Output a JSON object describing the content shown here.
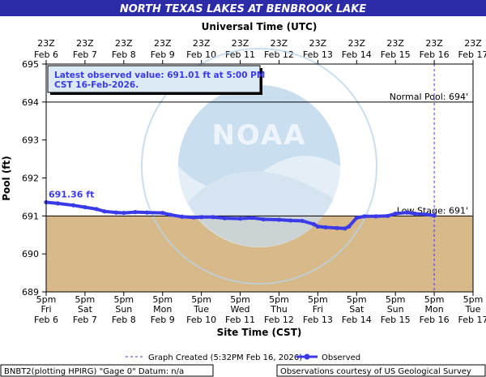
{
  "header": {
    "title": "NORTH TEXAS LAKES AT BENBROOK LAKE"
  },
  "top_axis": {
    "title": "Universal Time (UTC)",
    "ticks": [
      {
        "time": "23Z",
        "date": "Feb 6"
      },
      {
        "time": "23Z",
        "date": "Feb 7"
      },
      {
        "time": "23Z",
        "date": "Feb 8"
      },
      {
        "time": "23Z",
        "date": "Feb 9"
      },
      {
        "time": "23Z",
        "date": "Feb 10"
      },
      {
        "time": "23Z",
        "date": "Feb 11"
      },
      {
        "time": "23Z",
        "date": "Feb 12"
      },
      {
        "time": "23Z",
        "date": "Feb 13"
      },
      {
        "time": "23Z",
        "date": "Feb 14"
      },
      {
        "time": "23Z",
        "date": "Feb 15"
      },
      {
        "time": "23Z",
        "date": "Feb 16"
      },
      {
        "time": "23Z",
        "date": "Feb 17"
      }
    ]
  },
  "bottom_axis": {
    "title": "Site Time (CST)",
    "ticks": [
      {
        "time": "5pm",
        "day": "Fri",
        "date": "Feb 6"
      },
      {
        "time": "5pm",
        "day": "Sat",
        "date": "Feb 7"
      },
      {
        "time": "5pm",
        "day": "Sun",
        "date": "Feb 8"
      },
      {
        "time": "5pm",
        "day": "Mon",
        "date": "Feb 9"
      },
      {
        "time": "5pm",
        "day": "Tue",
        "date": "Feb 10"
      },
      {
        "time": "5pm",
        "day": "Wed",
        "date": "Feb 11"
      },
      {
        "time": "5pm",
        "day": "Thu",
        "date": "Feb 12"
      },
      {
        "time": "5pm",
        "day": "Fri",
        "date": "Feb 13"
      },
      {
        "time": "5pm",
        "day": "Sat",
        "date": "Feb 14"
      },
      {
        "time": "5pm",
        "day": "Sun",
        "date": "Feb 15"
      },
      {
        "time": "5pm",
        "day": "Mon",
        "date": "Feb 16"
      },
      {
        "time": "5pm",
        "day": "Tue",
        "date": "Feb 17"
      }
    ]
  },
  "chart_data": {
    "type": "line",
    "ylabel": "Pool (ft)",
    "ylim": [
      689,
      695
    ],
    "yticks": [
      689,
      690,
      691,
      692,
      693,
      694,
      695
    ],
    "xlim": [
      0,
      11
    ],
    "x_unit": "days after 5pm CST Feb 6",
    "grid": false,
    "legend_position": "bottom",
    "reference_lines": [
      {
        "name": "Normal Pool",
        "label": "Normal Pool: 694'",
        "value": 694
      },
      {
        "name": "Low Stage",
        "label": "Low Stage: 691'",
        "value": 691
      }
    ],
    "graph_created_x": 10,
    "series": [
      {
        "name": "Observed",
        "color": "#3a3ae8",
        "x": [
          0,
          0.3,
          0.7,
          1.0,
          1.3,
          1.5,
          1.8,
          2.0,
          2.3,
          2.6,
          3.0,
          3.2,
          3.5,
          3.8,
          4.0,
          4.3,
          4.6,
          5.0,
          5.3,
          5.6,
          6.0,
          6.3,
          6.6,
          6.9,
          7.0,
          7.2,
          7.5,
          7.7,
          7.8,
          8.0,
          8.2,
          8.5,
          8.8,
          9.0,
          9.3,
          9.5,
          9.8,
          10.0
        ],
        "y": [
          691.36,
          691.33,
          691.28,
          691.23,
          691.18,
          691.12,
          691.09,
          691.08,
          691.1,
          691.09,
          691.08,
          691.03,
          690.98,
          690.96,
          690.97,
          690.97,
          690.94,
          690.93,
          690.95,
          690.91,
          690.9,
          690.88,
          690.87,
          690.78,
          690.72,
          690.7,
          690.68,
          690.67,
          690.72,
          690.95,
          690.99,
          690.99,
          691.0,
          691.06,
          691.09,
          691.06,
          691.04,
          691.01
        ],
        "point_labels": [
          {
            "x": 0,
            "y": 691.36,
            "label": "691.36 ft"
          }
        ]
      }
    ],
    "annotation_box": {
      "line1": "Latest observed value: 691.01 ft at 5:00 PM",
      "line2": "CST 16-Feb-2026."
    },
    "legend": {
      "graph_created": "Graph Created (5:32PM Feb 16, 2026)",
      "observed": "Observed"
    }
  },
  "footer": {
    "left": "BNBT2(plotting HPIRG) \"Gage 0\" Datum: n/a",
    "right": "Observations courtesy of US Geological Survey"
  },
  "colors": {
    "title_bar": "#2c2ca8",
    "below_low_stage_fill": "#d8b98a",
    "observed": "#3a3ae8",
    "noaa_watermark": "#b7d3ea"
  }
}
